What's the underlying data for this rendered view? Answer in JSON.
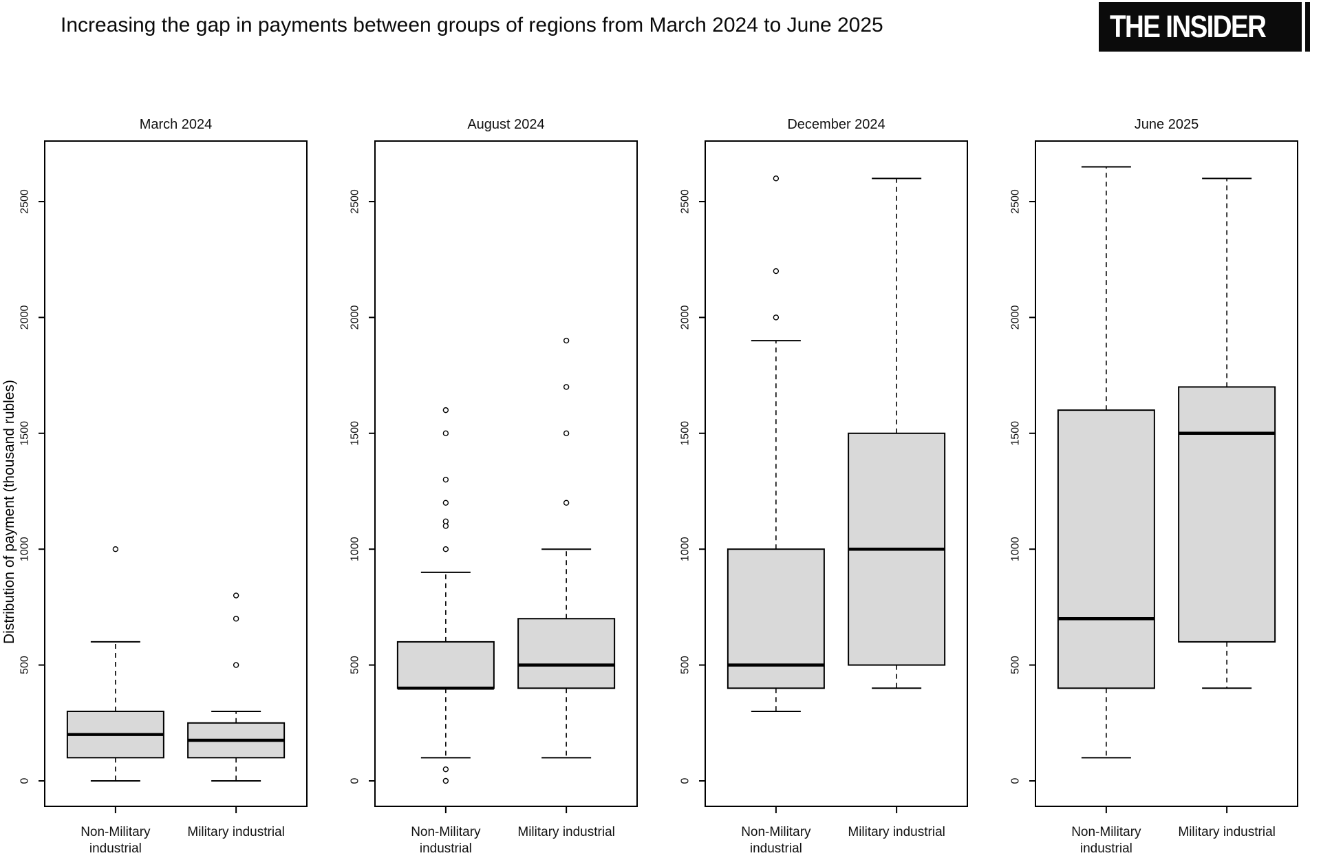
{
  "header": {
    "title": "Increasing the gap in payments between groups of regions from March 2024 to June 2025",
    "logo_text": "THE INSIDER"
  },
  "chart_data": {
    "type": "boxplot",
    "title": "Increasing the gap in payments between groups of regions from March 2024 to June 2025",
    "ylabel": "Distribution of payment (thousand rubles)",
    "yticks": [
      0,
      500,
      1000,
      1500,
      2000,
      2500
    ],
    "ylim": [
      -110,
      2760
    ],
    "grid": false,
    "legend": "none",
    "categories": [
      "Non-Military industrial",
      "Military industrial"
    ],
    "category_labels": [
      [
        "Non-Military",
        "industrial"
      ],
      [
        "Military industrial"
      ]
    ],
    "panels": [
      {
        "title": "March 2024",
        "boxes": [
          {
            "group": "Non-Military industrial",
            "whisker_low": 0,
            "q1": 100,
            "median": 200,
            "q3": 300,
            "whisker_high": 600,
            "outliers": [
              1000
            ]
          },
          {
            "group": "Military industrial",
            "whisker_low": 0,
            "q1": 100,
            "median": 175,
            "q3": 250,
            "whisker_high": 300,
            "outliers": [
              500,
              700,
              800
            ]
          }
        ]
      },
      {
        "title": "August 2024",
        "boxes": [
          {
            "group": "Non-Military industrial",
            "whisker_low": 100,
            "q1": 400,
            "median": 400,
            "q3": 600,
            "whisker_high": 900,
            "outliers": [
              0,
              50,
              1000,
              1100,
              1120,
              1200,
              1300,
              1500,
              1600
            ]
          },
          {
            "group": "Military industrial",
            "whisker_low": 100,
            "q1": 400,
            "median": 500,
            "q3": 700,
            "whisker_high": 1000,
            "outliers": [
              1200,
              1500,
              1700,
              1900
            ]
          }
        ]
      },
      {
        "title": "December 2024",
        "boxes": [
          {
            "group": "Non-Military industrial",
            "whisker_low": 300,
            "q1": 400,
            "median": 500,
            "q3": 1000,
            "whisker_high": 1900,
            "outliers": [
              2000,
              2200,
              2600
            ]
          },
          {
            "group": "Military industrial",
            "whisker_low": 400,
            "q1": 500,
            "median": 1000,
            "q3": 1500,
            "whisker_high": 2600,
            "outliers": []
          }
        ]
      },
      {
        "title": "June 2025",
        "boxes": [
          {
            "group": "Non-Military industrial",
            "whisker_low": 100,
            "q1": 400,
            "median": 700,
            "q3": 1600,
            "whisker_high": 2650,
            "outliers": []
          },
          {
            "group": "Military industrial",
            "whisker_low": 400,
            "q1": 600,
            "median": 1500,
            "q3": 1700,
            "whisker_high": 2600,
            "outliers": []
          }
        ]
      }
    ],
    "style": {
      "box_fill": "#d9d9d9",
      "line_color": "#000000",
      "text_color": "#111111",
      "background": "#ffffff",
      "logo_bg": "#0b0b0b",
      "logo_fg": "#ffffff"
    }
  }
}
